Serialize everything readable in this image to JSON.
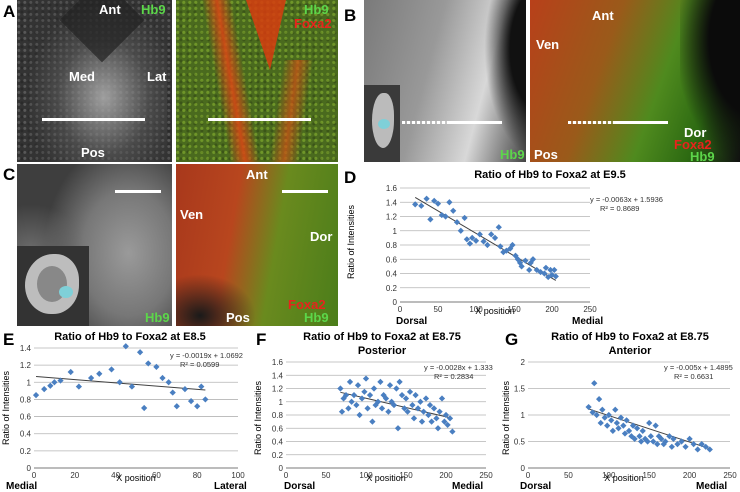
{
  "panels": {
    "A": {
      "letter": "A",
      "gray": {
        "ant": "Ant",
        "hb9": "Hb9",
        "med": "Med",
        "lat": "Lat",
        "pos": "Pos"
      },
      "merge": {
        "hb9": "Hb9",
        "foxa2": "Foxa2"
      }
    },
    "B": {
      "letter": "B",
      "gray": {
        "hb9": "Hb9"
      },
      "merge": {
        "ant": "Ant",
        "ven": "Ven",
        "dor": "Dor",
        "pos": "Pos",
        "foxa2": "Foxa2",
        "hb9": "Hb9"
      }
    },
    "C": {
      "letter": "C",
      "gray": {
        "hb9": "Hb9"
      },
      "merge": {
        "ant": "Ant",
        "ven": "Ven",
        "dor": "Dor",
        "pos": "Pos",
        "foxa2": "Foxa2",
        "hb9": "Hb9"
      }
    },
    "D": {
      "letter": "D",
      "left_label": "Dorsal",
      "right_label": "Medial"
    },
    "E": {
      "letter": "E",
      "left_label": "Medial",
      "right_label": "Lateral"
    },
    "F": {
      "letter": "F",
      "left_label": "Dorsal",
      "right_label": "Medial"
    },
    "G": {
      "letter": "G",
      "left_label": "Dorsal",
      "right_label": "Medial"
    }
  },
  "colors": {
    "hb9_green": "#5cd64a",
    "foxa2_red": "#e8231c",
    "marker": "#4a7fc1",
    "trendline": "#404040"
  },
  "chart_data": [
    {
      "id": "D",
      "type": "scatter",
      "title": "Ratio of Hb9 to Foxa2 at E9.5",
      "subtitle": "",
      "xlabel": "X position",
      "ylabel": "Ratio of Intensities",
      "xlim": [
        0,
        250
      ],
      "ylim": [
        0,
        1.6
      ],
      "xticks": [
        0,
        50,
        100,
        150,
        200,
        250
      ],
      "yticks": [
        0,
        0.2,
        0.4,
        0.6,
        0.8,
        1,
        1.2,
        1.4,
        1.6
      ],
      "equation": "y = -0.0063x + 1.5936",
      "r2": "R² = 0.8689",
      "trend": {
        "slope": -0.0063,
        "intercept": 1.5936
      },
      "points": [
        [
          20,
          1.37
        ],
        [
          28,
          1.35
        ],
        [
          35,
          1.45
        ],
        [
          40,
          1.16
        ],
        [
          45,
          1.42
        ],
        [
          50,
          1.38
        ],
        [
          55,
          1.22
        ],
        [
          60,
          1.2
        ],
        [
          65,
          1.4
        ],
        [
          70,
          1.28
        ],
        [
          75,
          1.12
        ],
        [
          80,
          1.0
        ],
        [
          85,
          1.18
        ],
        [
          88,
          0.88
        ],
        [
          92,
          0.82
        ],
        [
          95,
          0.9
        ],
        [
          100,
          0.86
        ],
        [
          105,
          0.95
        ],
        [
          110,
          0.85
        ],
        [
          115,
          0.8
        ],
        [
          120,
          0.95
        ],
        [
          125,
          0.9
        ],
        [
          130,
          1.05
        ],
        [
          132,
          0.78
        ],
        [
          136,
          0.7
        ],
        [
          140,
          0.72
        ],
        [
          145,
          0.75
        ],
        [
          148,
          0.8
        ],
        [
          152,
          0.65
        ],
        [
          155,
          0.6
        ],
        [
          158,
          0.55
        ],
        [
          160,
          0.5
        ],
        [
          165,
          0.58
        ],
        [
          170,
          0.45
        ],
        [
          172,
          0.55
        ],
        [
          175,
          0.6
        ],
        [
          180,
          0.45
        ],
        [
          185,
          0.42
        ],
        [
          190,
          0.4
        ],
        [
          192,
          0.48
        ],
        [
          195,
          0.35
        ],
        [
          198,
          0.45
        ],
        [
          200,
          0.38
        ],
        [
          203,
          0.45
        ],
        [
          205,
          0.36
        ]
      ]
    },
    {
      "id": "E",
      "type": "scatter",
      "title": "Ratio of Hb9 to Foxa2 at E8.5",
      "subtitle": "",
      "xlabel": "X position",
      "ylabel": "Ratio of Intensities",
      "xlim": [
        0,
        100
      ],
      "ylim": [
        0,
        1.4
      ],
      "xticks": [
        0,
        20,
        40,
        60,
        80,
        100
      ],
      "yticks": [
        0,
        0.2,
        0.4,
        0.6,
        0.8,
        1,
        1.2,
        1.4
      ],
      "equation": "y = -0.0019x + 1.0692",
      "r2": "R² = 0.0599",
      "trend": {
        "slope": -0.0019,
        "intercept": 1.0692
      },
      "points": [
        [
          1,
          0.85
        ],
        [
          5,
          0.92
        ],
        [
          8,
          0.96
        ],
        [
          10,
          1.0
        ],
        [
          13,
          1.02
        ],
        [
          18,
          1.12
        ],
        [
          22,
          0.95
        ],
        [
          28,
          1.05
        ],
        [
          32,
          1.1
        ],
        [
          38,
          1.15
        ],
        [
          42,
          1.0
        ],
        [
          45,
          1.42
        ],
        [
          48,
          0.95
        ],
        [
          52,
          1.35
        ],
        [
          54,
          0.7
        ],
        [
          56,
          1.22
        ],
        [
          60,
          1.18
        ],
        [
          63,
          1.05
        ],
        [
          66,
          1.0
        ],
        [
          68,
          0.88
        ],
        [
          70,
          0.72
        ],
        [
          74,
          0.92
        ],
        [
          77,
          0.78
        ],
        [
          80,
          0.72
        ],
        [
          82,
          0.95
        ],
        [
          84,
          0.8
        ]
      ]
    },
    {
      "id": "F",
      "type": "scatter",
      "title": "Ratio of Hb9 to Foxa2 at E8.75",
      "subtitle": "Posterior",
      "xlabel": "X position",
      "ylabel": "Ratio of Intensities",
      "xlim": [
        0,
        250
      ],
      "ylim": [
        0,
        1.6
      ],
      "xticks": [
        0,
        50,
        100,
        150,
        200,
        250
      ],
      "yticks": [
        0,
        0.2,
        0.4,
        0.6,
        0.8,
        1,
        1.2,
        1.4,
        1.6
      ],
      "equation": "y = -0.0028x + 1.333",
      "r2": "R² = 0.2834",
      "trend": {
        "slope": -0.0028,
        "intercept": 1.333
      },
      "points": [
        [
          68,
          1.2
        ],
        [
          70,
          0.85
        ],
        [
          72,
          1.05
        ],
        [
          75,
          1.1
        ],
        [
          78,
          0.9
        ],
        [
          80,
          1.3
        ],
        [
          82,
          1.0
        ],
        [
          85,
          1.1
        ],
        [
          88,
          0.95
        ],
        [
          90,
          1.25
        ],
        [
          92,
          0.8
        ],
        [
          95,
          1.05
        ],
        [
          98,
          1.15
        ],
        [
          100,
          1.35
        ],
        [
          102,
          0.9
        ],
        [
          105,
          1.1
        ],
        [
          108,
          0.7
        ],
        [
          110,
          1.2
        ],
        [
          112,
          0.95
        ],
        [
          115,
          1.0
        ],
        [
          118,
          1.3
        ],
        [
          120,
          0.9
        ],
        [
          122,
          1.1
        ],
        [
          125,
          1.05
        ],
        [
          128,
          0.85
        ],
        [
          130,
          1.25
        ],
        [
          132,
          1.0
        ],
        [
          135,
          0.95
        ],
        [
          138,
          1.2
        ],
        [
          140,
          0.6
        ],
        [
          142,
          1.3
        ],
        [
          145,
          1.1
        ],
        [
          148,
          0.9
        ],
        [
          150,
          1.05
        ],
        [
          152,
          0.85
        ],
        [
          155,
          1.15
        ],
        [
          158,
          0.95
        ],
        [
          160,
          0.75
        ],
        [
          162,
          1.1
        ],
        [
          165,
          0.9
        ],
        [
          168,
          1.0
        ],
        [
          170,
          0.7
        ],
        [
          172,
          0.85
        ],
        [
          175,
          1.05
        ],
        [
          178,
          0.8
        ],
        [
          180,
          0.95
        ],
        [
          182,
          0.7
        ],
        [
          185,
          0.9
        ],
        [
          188,
          0.75
        ],
        [
          190,
          0.6
        ],
        [
          192,
          0.85
        ],
        [
          195,
          1.05
        ],
        [
          198,
          0.7
        ],
        [
          200,
          0.8
        ],
        [
          202,
          0.65
        ],
        [
          205,
          0.75
        ],
        [
          208,
          0.55
        ]
      ]
    },
    {
      "id": "G",
      "type": "scatter",
      "title": "Ratio of Hb9 to Foxa2 at E8.75",
      "subtitle": "Anterior",
      "xlabel": "X position",
      "ylabel": "Ratio of Intensities",
      "xlim": [
        0,
        250
      ],
      "ylim": [
        0,
        2
      ],
      "xticks": [
        0,
        50,
        100,
        150,
        200,
        250
      ],
      "yticks": [
        0,
        0.5,
        1,
        1.5,
        2
      ],
      "equation": "y = -0.005x + 1.4895",
      "r2": "R² = 0.6631",
      "trend": {
        "slope": -0.005,
        "intercept": 1.4895
      },
      "points": [
        [
          75,
          1.15
        ],
        [
          80,
          1.05
        ],
        [
          82,
          1.6
        ],
        [
          85,
          1.0
        ],
        [
          88,
          1.3
        ],
        [
          90,
          0.85
        ],
        [
          92,
          1.1
        ],
        [
          95,
          0.95
        ],
        [
          98,
          0.8
        ],
        [
          100,
          1.0
        ],
        [
          103,
          0.9
        ],
        [
          105,
          0.7
        ],
        [
          108,
          1.1
        ],
        [
          110,
          0.85
        ],
        [
          112,
          0.75
        ],
        [
          115,
          0.95
        ],
        [
          118,
          0.8
        ],
        [
          120,
          0.65
        ],
        [
          122,
          0.9
        ],
        [
          125,
          0.7
        ],
        [
          128,
          0.6
        ],
        [
          130,
          0.8
        ],
        [
          132,
          0.55
        ],
        [
          135,
          0.75
        ],
        [
          138,
          0.6
        ],
        [
          140,
          0.5
        ],
        [
          142,
          0.7
        ],
        [
          145,
          0.55
        ],
        [
          148,
          0.5
        ],
        [
          150,
          0.85
        ],
        [
          152,
          0.6
        ],
        [
          155,
          0.5
        ],
        [
          158,
          0.8
        ],
        [
          160,
          0.45
        ],
        [
          162,
          0.6
        ],
        [
          165,
          0.55
        ],
        [
          168,
          0.45
        ],
        [
          170,
          0.5
        ],
        [
          175,
          0.6
        ],
        [
          178,
          0.4
        ],
        [
          180,
          0.55
        ],
        [
          185,
          0.45
        ],
        [
          190,
          0.5
        ],
        [
          195,
          0.4
        ],
        [
          200,
          0.55
        ],
        [
          205,
          0.45
        ],
        [
          210,
          0.35
        ],
        [
          215,
          0.45
        ],
        [
          220,
          0.4
        ],
        [
          225,
          0.35
        ]
      ]
    }
  ]
}
